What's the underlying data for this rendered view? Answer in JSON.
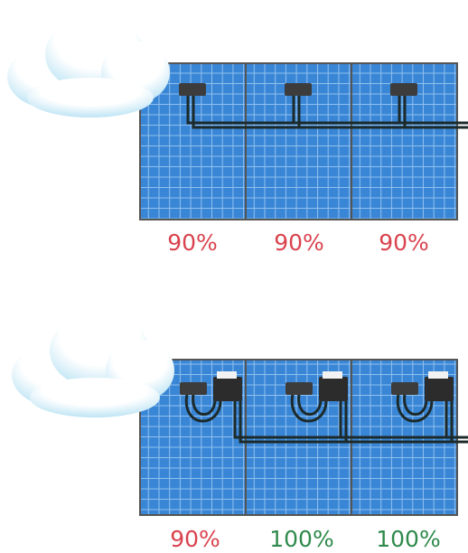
{
  "rows": [
    {
      "labels": [
        "90%",
        "90%",
        "90%"
      ]
    },
    {
      "labels": [
        "90%",
        "100%",
        "100%"
      ]
    }
  ]
}
